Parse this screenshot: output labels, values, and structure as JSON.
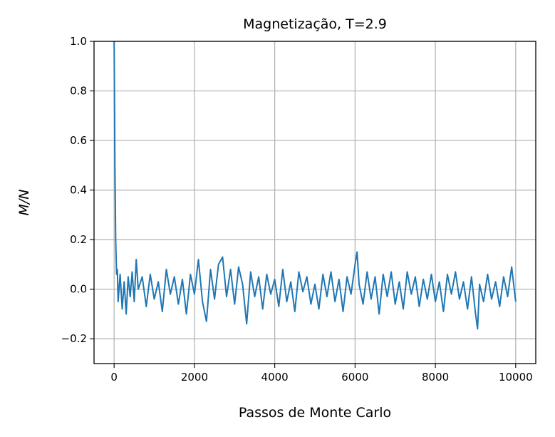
{
  "chart_data": {
    "type": "line",
    "title": "Magnetização, T=2.9",
    "xlabel": "Passos de Monte Carlo",
    "ylabel": "M/N",
    "xlim": [
      -500,
      10500
    ],
    "ylim": [
      -0.3,
      1.0
    ],
    "xticks": [
      0,
      2000,
      4000,
      6000,
      8000,
      10000
    ],
    "xtick_labels": [
      "0",
      "2000",
      "4000",
      "6000",
      "8000",
      "10000"
    ],
    "yticks": [
      -0.2,
      0.0,
      0.2,
      0.4,
      0.6,
      0.8,
      1.0
    ],
    "ytick_labels": [
      "−0.2",
      "0.0",
      "0.2",
      "0.4",
      "0.6",
      "0.8",
      "1.0"
    ],
    "grid": true,
    "series": [
      {
        "color": "#1f77b4",
        "x": [
          0,
          20,
          40,
          60,
          80,
          100,
          150,
          200,
          250,
          300,
          350,
          400,
          450,
          500,
          550,
          600,
          700,
          800,
          900,
          1000,
          1100,
          1200,
          1300,
          1400,
          1500,
          1600,
          1700,
          1800,
          1900,
          2000,
          2100,
          2200,
          2300,
          2400,
          2500,
          2600,
          2700,
          2800,
          2900,
          3000,
          3100,
          3200,
          3300,
          3400,
          3500,
          3600,
          3700,
          3800,
          3900,
          4000,
          4100,
          4200,
          4300,
          4400,
          4500,
          4600,
          4700,
          4800,
          4900,
          5000,
          5100,
          5200,
          5300,
          5400,
          5500,
          5600,
          5700,
          5800,
          5900,
          6000,
          6050,
          6100,
          6200,
          6300,
          6400,
          6500,
          6600,
          6700,
          6800,
          6900,
          7000,
          7100,
          7200,
          7300,
          7400,
          7500,
          7600,
          7700,
          7800,
          7900,
          8000,
          8100,
          8200,
          8300,
          8400,
          8500,
          8600,
          8700,
          8800,
          8900,
          9000,
          9050,
          9100,
          9200,
          9300,
          9400,
          9500,
          9600,
          9700,
          9800,
          9900,
          10000
        ],
        "y": [
          1.0,
          0.5,
          0.2,
          0.06,
          0.08,
          -0.05,
          0.06,
          -0.08,
          0.03,
          -0.1,
          0.05,
          -0.03,
          0.07,
          -0.05,
          0.12,
          0.0,
          0.05,
          -0.07,
          0.06,
          -0.04,
          0.03,
          -0.09,
          0.08,
          -0.02,
          0.05,
          -0.06,
          0.04,
          -0.1,
          0.06,
          -0.02,
          0.12,
          -0.05,
          -0.13,
          0.08,
          -0.04,
          0.1,
          0.13,
          -0.03,
          0.08,
          -0.06,
          0.09,
          0.02,
          -0.14,
          0.07,
          -0.03,
          0.05,
          -0.08,
          0.06,
          -0.02,
          0.04,
          -0.07,
          0.08,
          -0.05,
          0.03,
          -0.09,
          0.07,
          -0.01,
          0.05,
          -0.06,
          0.02,
          -0.08,
          0.06,
          -0.03,
          0.07,
          -0.05,
          0.04,
          -0.09,
          0.05,
          -0.02,
          0.1,
          0.15,
          0.02,
          -0.06,
          0.07,
          -0.04,
          0.05,
          -0.1,
          0.06,
          -0.03,
          0.07,
          -0.06,
          0.03,
          -0.08,
          0.07,
          -0.02,
          0.05,
          -0.07,
          0.04,
          -0.04,
          0.06,
          -0.05,
          0.03,
          -0.09,
          0.06,
          -0.02,
          0.07,
          -0.04,
          0.03,
          -0.08,
          0.05,
          -0.1,
          -0.16,
          0.02,
          -0.05,
          0.06,
          -0.04,
          0.03,
          -0.07,
          0.05,
          -0.03,
          0.09,
          -0.05
        ]
      }
    ]
  }
}
